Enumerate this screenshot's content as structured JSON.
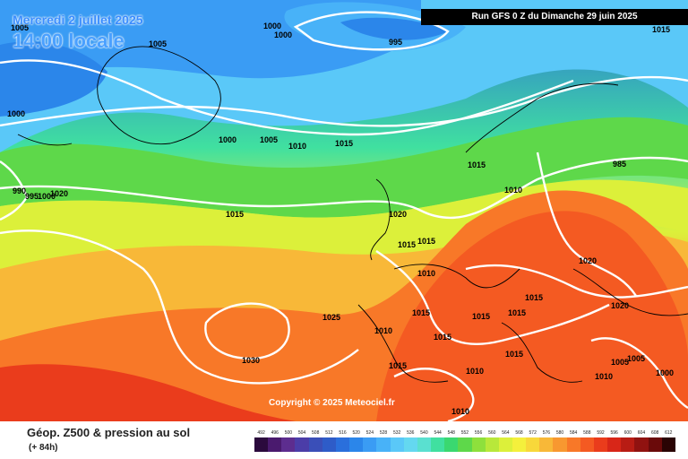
{
  "map": {
    "date": "Mercredi 2 juillet 2025",
    "time": "14:00 locale",
    "run": "Run GFS 0 Z du Dimanche 29 juin 2025",
    "copyright": "Copyright © 2025 Meteociel.fr",
    "pressure_labels": [
      "1005",
      "1005",
      "1000",
      "1000",
      "995",
      "1015",
      "1000",
      "1000",
      "1005",
      "1010",
      "1015",
      "1015",
      "1010",
      "985",
      "990",
      "995",
      "1000",
      "1020",
      "1015",
      "1020",
      "1015",
      "1015",
      "1010",
      "1020",
      "1025",
      "1015",
      "1015",
      "1015",
      "1010",
      "1015",
      "1020",
      "1015",
      "1030",
      "1015",
      "1010",
      "1015",
      "1005",
      "1005",
      "1000",
      "1010",
      "1010"
    ]
  },
  "legend": {
    "title": "Géop. Z500 & pression au sol",
    "subtitle": "(+ 84h)",
    "values": [
      "492",
      "496",
      "500",
      "504",
      "508",
      "512",
      "516",
      "520",
      "524",
      "528",
      "532",
      "536",
      "540",
      "544",
      "548",
      "552",
      "556",
      "560",
      "564",
      "568",
      "572",
      "576",
      "580",
      "584",
      "588",
      "592",
      "596",
      "600",
      "604",
      "608",
      "612"
    ],
    "colors": [
      "#2b0a3d",
      "#4a1a6e",
      "#5d2d8f",
      "#4b3da8",
      "#3a4fb8",
      "#2e5cc8",
      "#2a6fdc",
      "#2b86ea",
      "#3a9cf4",
      "#48b2f8",
      "#5ac8f8",
      "#64d8f0",
      "#5ae0d0",
      "#40e0a0",
      "#3ad870",
      "#5ed84a",
      "#8ee03c",
      "#b8e83a",
      "#dcf03a",
      "#f4f03c",
      "#f8d83a",
      "#f8b838",
      "#f89830",
      "#f87828",
      "#f45a22",
      "#ea3c1c",
      "#d82618",
      "#b81c14",
      "#901210",
      "#6a0a0a",
      "#2a0404"
    ]
  }
}
